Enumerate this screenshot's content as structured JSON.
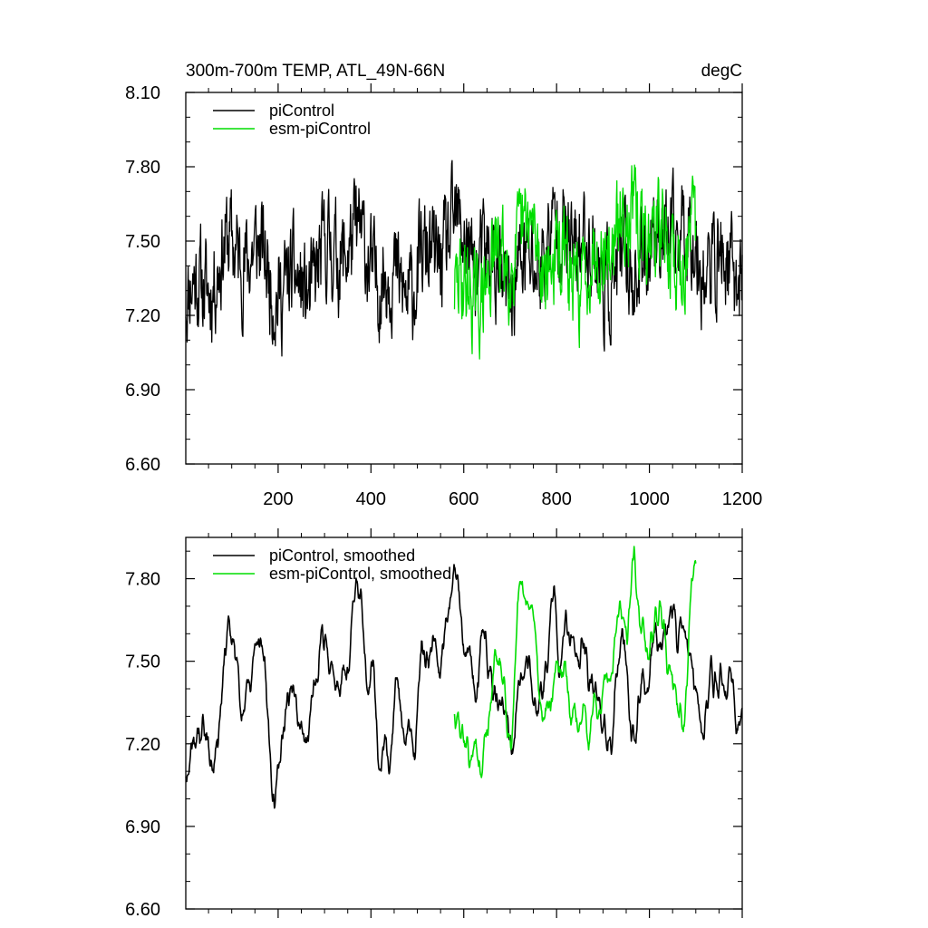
{
  "chart_data": [
    {
      "type": "line",
      "title_left": "300m-700m TEMP, ATL_49N-66N",
      "title_right": "degC",
      "xlabel": "",
      "ylabel": "",
      "xlim": [
        1,
        1200
      ],
      "ylim": [
        6.6,
        8.1
      ],
      "xticks": [
        200,
        400,
        600,
        800,
        1000,
        1200
      ],
      "xtick_labels": [
        "200",
        "400",
        "600",
        "800",
        "1000",
        "1200"
      ],
      "yticks": [
        6.6,
        6.9,
        7.2,
        7.5,
        7.8,
        8.1
      ],
      "ytick_labels": [
        "6.60",
        "6.90",
        "7.20",
        "7.50",
        "7.80",
        "8.10"
      ],
      "legend_position": "top-left",
      "grid": false,
      "series": [
        {
          "name": "piControl",
          "color": "#000000",
          "x_start": 1,
          "x_end": 1200,
          "mean": 7.42,
          "trend": 0.1,
          "amplitude": 0.22,
          "smoothed": false,
          "seed": 11
        },
        {
          "name": "esm-piControl",
          "color": "#00dd00",
          "x_start": 580,
          "x_end": 1100,
          "mean": 7.45,
          "trend": 0.18,
          "amplitude": 0.2,
          "smoothed": false,
          "seed": 29
        }
      ]
    },
    {
      "type": "line",
      "title_left": "",
      "title_right": "",
      "xlabel": "",
      "ylabel": "",
      "xlim": [
        1,
        1200
      ],
      "ylim": [
        6.6,
        7.95
      ],
      "xticks": [
        200,
        400,
        600,
        800,
        1000,
        1200
      ],
      "xtick_labels": [],
      "yticks": [
        6.6,
        6.9,
        7.2,
        7.5,
        7.8
      ],
      "ytick_labels": [
        "6.60",
        "6.90",
        "7.20",
        "7.50",
        "7.80"
      ],
      "legend_position": "top-left",
      "grid": false,
      "series": [
        {
          "name": "piControl, smoothed",
          "color": "#000000",
          "x_start": 1,
          "x_end": 1200,
          "mean": 7.42,
          "trend": 0.1,
          "amplitude": 0.22,
          "smoothed": true,
          "seed": 11
        },
        {
          "name": "esm-piControl, smoothed",
          "color": "#00dd00",
          "x_start": 580,
          "x_end": 1100,
          "mean": 7.45,
          "trend": 0.18,
          "amplitude": 0.2,
          "smoothed": true,
          "seed": 29
        }
      ]
    }
  ]
}
